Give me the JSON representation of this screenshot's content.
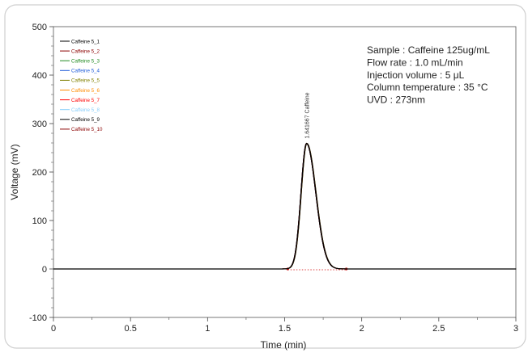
{
  "chart_data": {
    "type": "line",
    "xlabel": "Time (min)",
    "ylabel": "Voltage (mV)",
    "xlim": [
      0,
      3
    ],
    "ylim": [
      -100,
      500
    ],
    "x_ticks": [
      "0",
      "0.5",
      "1",
      "1.5",
      "2",
      "2.5",
      "3"
    ],
    "y_ticks": [
      "-100",
      "0",
      "100",
      "200",
      "300",
      "400",
      "500"
    ],
    "x_tick_values": [
      0,
      0.5,
      1,
      1.5,
      2,
      2.5,
      3
    ],
    "y_tick_values": [
      -100,
      0,
      100,
      200,
      300,
      400,
      500
    ],
    "legend_position": "top-left",
    "series": [
      {
        "name": "Caffeine 5_1",
        "color": "#000000"
      },
      {
        "name": "Caffeine 5_2",
        "color": "#8b0000"
      },
      {
        "name": "Caffeine 5_3",
        "color": "#228b22"
      },
      {
        "name": "Caffeine 5_4",
        "color": "#1e5bd8"
      },
      {
        "name": "Caffeine 5_5",
        "color": "#808000"
      },
      {
        "name": "Caffeine 5_6",
        "color": "#ff8c00"
      },
      {
        "name": "Caffeine 5_7",
        "color": "#ff0000"
      },
      {
        "name": "Caffeine 5_8",
        "color": "#87cefa"
      },
      {
        "name": "Caffeine 5_9",
        "color": "#000000"
      },
      {
        "name": "Caffeine 5_10",
        "color": "#8b0000"
      }
    ],
    "peak": {
      "label": "1.641667 Caffeine",
      "retention_time": 1.641667,
      "height": 259,
      "start": 1.52,
      "end": 1.9
    },
    "annotations": [
      "Sample : Caffeine 125ug/mL",
      "Flow rate : 1.0 mL/min",
      "Injection volume : 5 μL",
      "Column temperature : 35 °C",
      "UVD : 273nm"
    ]
  }
}
